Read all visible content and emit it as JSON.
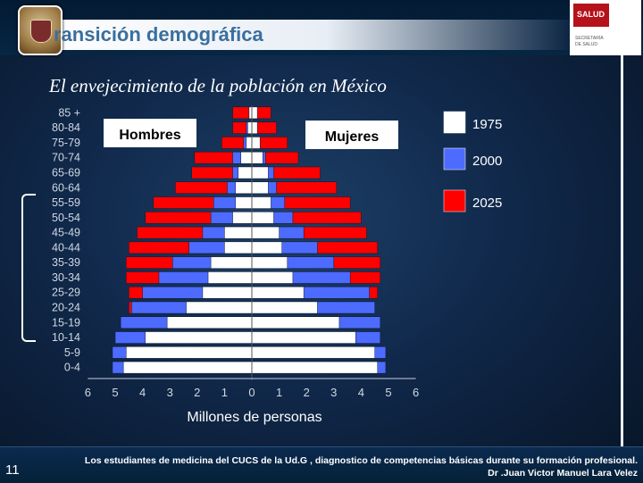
{
  "header": {
    "title": "ransición demográfica",
    "logo_icon": "university-crest-icon",
    "brand_badge": "SALUD",
    "brand_sub_1": "SECRETARÍA",
    "brand_sub_2": "DE SALUD"
  },
  "slide": {
    "subtitle": "El envejecimiento de la población en México",
    "page_number": "11"
  },
  "footer": {
    "line1": "Los estudiantes de medicina del CUCS de la  Ud.G , diagnostico de competencias básicas durante su formación profesional.",
    "line2": "Dr .Juan Victor Manuel Lara Velez"
  },
  "chart_data": {
    "type": "bar",
    "subtype": "population-pyramid",
    "title": "",
    "xlabel": "Millones de personas",
    "ylabel": "",
    "xlim": [
      -6,
      6
    ],
    "x_ticks": [
      "6",
      "5",
      "4",
      "3",
      "2",
      "1",
      "0",
      "1",
      "2",
      "3",
      "4",
      "5",
      "6"
    ],
    "categories": [
      "0-4",
      "5-9",
      "10-14",
      "15-19",
      "20-24",
      "25-29",
      "30-34",
      "35-39",
      "40-44",
      "45-49",
      "50-54",
      "55-59",
      "60-64",
      "65-69",
      "70-74",
      "75-79",
      "80-84",
      "85 +"
    ],
    "group_labels": {
      "left": "Hombres",
      "right": "Mujeres"
    },
    "legend_position": "right",
    "series": [
      {
        "name": "2025",
        "color": "#ff0000",
        "men": [
          4.3,
          4.3,
          4.5,
          4.4,
          4.5,
          4.5,
          4.6,
          4.6,
          4.5,
          4.2,
          3.9,
          3.6,
          2.8,
          2.2,
          2.1,
          1.1,
          0.7,
          0.7
        ],
        "women": [
          4.2,
          4.2,
          4.3,
          4.2,
          4.4,
          4.6,
          4.7,
          4.7,
          4.6,
          4.2,
          4.0,
          3.6,
          3.1,
          2.5,
          1.7,
          1.3,
          0.9,
          0.7
        ]
      },
      {
        "name": "2000",
        "color": "#4d6bff",
        "men": [
          5.1,
          5.1,
          5.0,
          4.8,
          4.4,
          4.0,
          3.4,
          2.9,
          2.3,
          1.8,
          1.5,
          1.4,
          0.9,
          0.7,
          0.7,
          0.3,
          0.2,
          0.1
        ],
        "women": [
          4.9,
          4.9,
          4.7,
          4.7,
          4.5,
          4.3,
          3.6,
          3.0,
          2.4,
          1.9,
          1.5,
          1.2,
          0.9,
          0.8,
          0.5,
          0.3,
          0.2,
          0.1
        ]
      },
      {
        "name": "1975",
        "color": "#ffffff",
        "men": [
          4.7,
          4.6,
          3.9,
          3.1,
          2.4,
          1.8,
          1.6,
          1.5,
          1.0,
          1.0,
          0.7,
          0.6,
          0.6,
          0.5,
          0.4,
          0.2,
          0.15,
          0.1
        ],
        "women": [
          4.6,
          4.5,
          3.8,
          3.2,
          2.4,
          1.9,
          1.5,
          1.3,
          1.1,
          1.0,
          0.8,
          0.7,
          0.6,
          0.6,
          0.4,
          0.3,
          0.2,
          0.2
        ]
      }
    ],
    "grid": false
  }
}
